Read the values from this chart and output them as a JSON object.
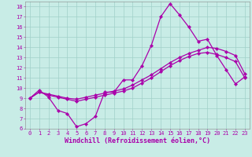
{
  "xlabel": "Windchill (Refroidissement éolien,°C)",
  "xlim": [
    -0.5,
    23.5
  ],
  "ylim": [
    6,
    18.5
  ],
  "xticks": [
    0,
    1,
    2,
    3,
    4,
    5,
    6,
    7,
    8,
    9,
    10,
    11,
    12,
    13,
    14,
    15,
    16,
    17,
    18,
    19,
    20,
    21,
    22,
    23
  ],
  "yticks": [
    6,
    7,
    8,
    9,
    10,
    11,
    12,
    13,
    14,
    15,
    16,
    17,
    18
  ],
  "bg_color": "#c8ece6",
  "grid_color": "#a0d0c8",
  "line_color": "#aa00aa",
  "series": [
    {
      "x": [
        0,
        1,
        2,
        3,
        4,
        5,
        6,
        7,
        8,
        9,
        10,
        11,
        12,
        13,
        14,
        15,
        16,
        17,
        18,
        19,
        20,
        21,
        22,
        23
      ],
      "y": [
        9.0,
        9.8,
        9.1,
        7.8,
        7.5,
        6.2,
        6.5,
        7.2,
        9.6,
        9.6,
        10.8,
        10.8,
        12.2,
        14.2,
        17.0,
        18.3,
        17.2,
        16.0,
        14.6,
        14.8,
        13.2,
        11.8,
        10.4,
        11.1
      ]
    },
    {
      "x": [
        0,
        1,
        2,
        3,
        4,
        5,
        6,
        7,
        8,
        9,
        10,
        11,
        12,
        13,
        14,
        15,
        16,
        17,
        18,
        19,
        20,
        21,
        22,
        23
      ],
      "y": [
        9.0,
        9.6,
        9.3,
        9.1,
        8.9,
        8.7,
        8.9,
        9.1,
        9.3,
        9.5,
        9.7,
        10.0,
        10.5,
        11.0,
        11.6,
        12.2,
        12.7,
        13.1,
        13.4,
        13.5,
        13.3,
        13.0,
        12.6,
        11.0
      ]
    },
    {
      "x": [
        0,
        1,
        2,
        3,
        4,
        5,
        6,
        7,
        8,
        9,
        10,
        11,
        12,
        13,
        14,
        15,
        16,
        17,
        18,
        19,
        20,
        21,
        22,
        23
      ],
      "y": [
        9.0,
        9.6,
        9.4,
        9.2,
        9.0,
        8.9,
        9.1,
        9.3,
        9.5,
        9.7,
        9.9,
        10.3,
        10.8,
        11.3,
        11.9,
        12.5,
        13.0,
        13.4,
        13.7,
        14.0,
        13.9,
        13.6,
        13.2,
        11.4
      ]
    }
  ],
  "font_size": 5.5,
  "tick_font_size": 5.0,
  "xlabel_font_size": 6.0
}
